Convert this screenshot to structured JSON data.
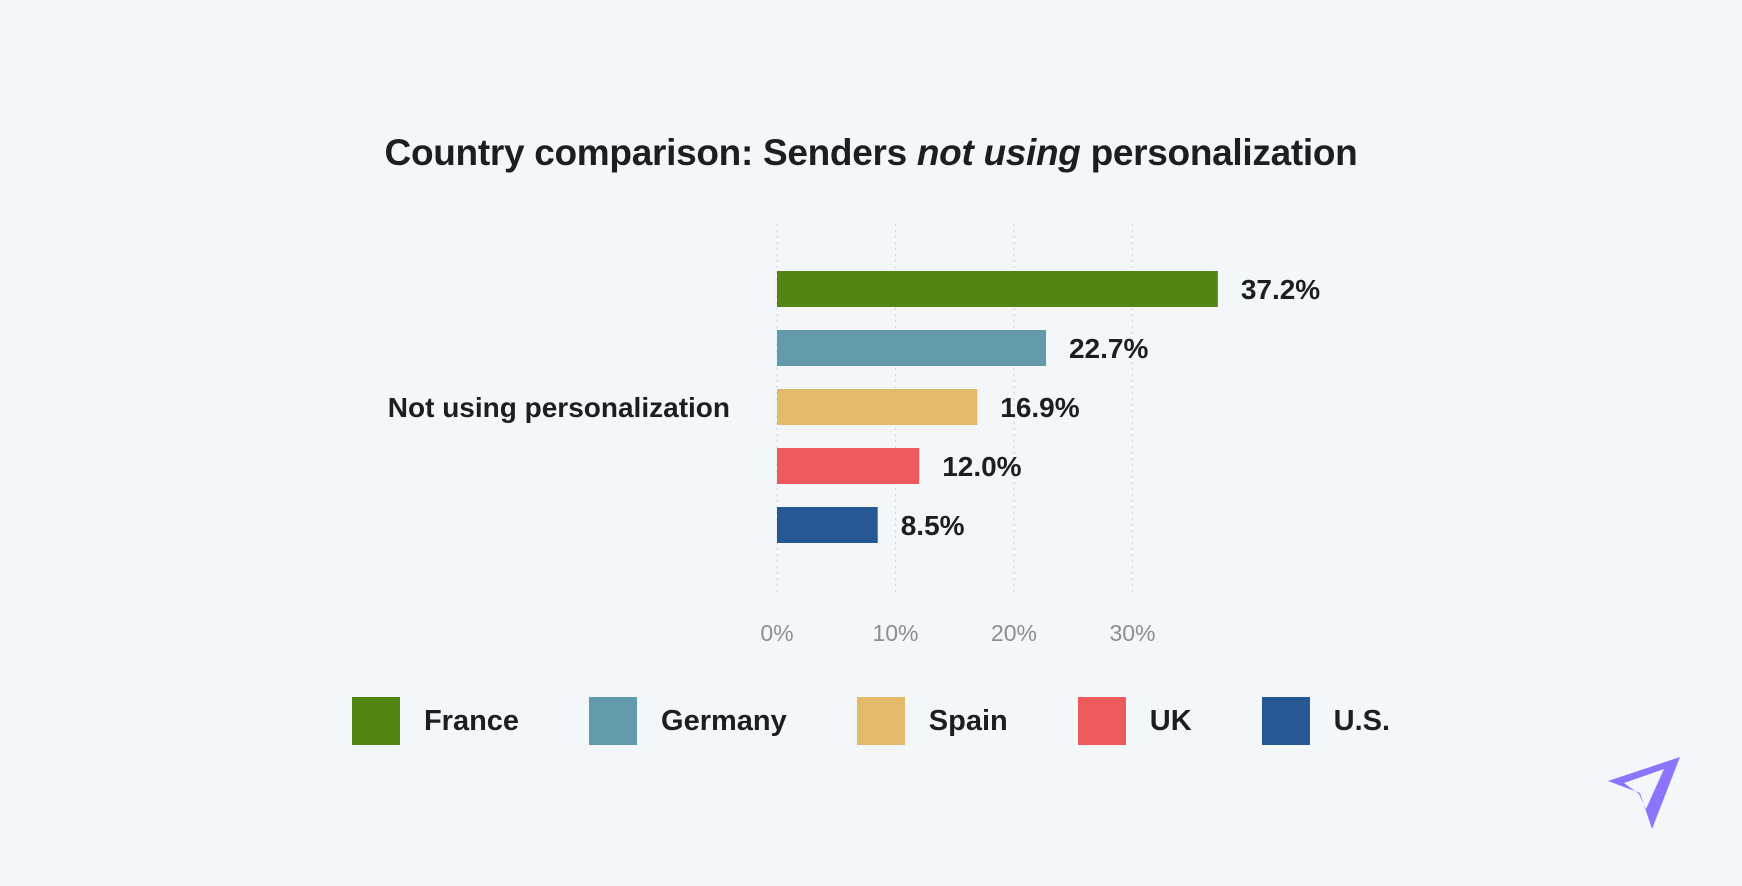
{
  "title": {
    "part1": "Country comparison: Senders ",
    "emphasis": "not using",
    "part2": " personalization"
  },
  "chart_data": {
    "type": "bar",
    "orientation": "horizontal",
    "title": "Country comparison: Senders not using personalization",
    "categories": [
      "Not using personalization"
    ],
    "series": [
      {
        "name": "France",
        "values": [
          37.2
        ],
        "label": "37.2%",
        "color": "#528514"
      },
      {
        "name": "Germany",
        "values": [
          22.7
        ],
        "label": "22.7%",
        "color": "#629aab"
      },
      {
        "name": "Spain",
        "values": [
          16.9
        ],
        "label": "16.9%",
        "color": "#e3b96a"
      },
      {
        "name": "UK",
        "values": [
          12.0
        ],
        "label": "12.0%",
        "color": "#ef5b5c"
      },
      {
        "name": "U.S.",
        "values": [
          8.5
        ],
        "label": "8.5%",
        "color": "#275896"
      }
    ],
    "x_ticks": [
      "0%",
      "10%",
      "20%",
      "30%"
    ],
    "x_tick_values": [
      0,
      10,
      20,
      30
    ],
    "xlim": [
      0,
      40
    ],
    "grid": "vertical dotted",
    "legend_position": "bottom"
  },
  "logo_icon": "paper-plane-icon",
  "colors": {
    "background": "#f3f7fa",
    "text": "#1c1e22",
    "tick_text": "#8a8f96",
    "grid": "#d5dade",
    "logo": "#8d74ff"
  }
}
